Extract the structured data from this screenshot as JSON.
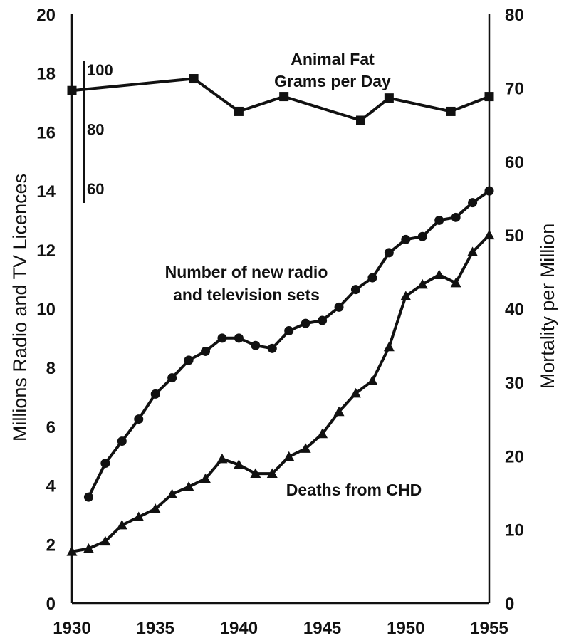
{
  "chart_data": {
    "type": "line",
    "xlabel": "",
    "ylabel_left": "Millions Radio and TV Licences",
    "ylabel_right": "Mortality per Million",
    "xlim": [
      1930,
      1955
    ],
    "ylim_left": [
      0,
      20
    ],
    "ylim_right": [
      0,
      80
    ],
    "grid": false,
    "x_ticks": [
      "1930",
      "1935",
      "1940",
      "1945",
      "1950",
      "1955"
    ],
    "y_ticks_left": [
      "0",
      "2",
      "4",
      "6",
      "8",
      "10",
      "12",
      "14",
      "16",
      "18",
      "20"
    ],
    "y_ticks_right": [
      "0",
      "10",
      "20",
      "30",
      "40",
      "50",
      "60",
      "70",
      "80"
    ],
    "fat_scale_ticks": [
      "100",
      "80",
      "60"
    ],
    "fat_scale_range": [
      60,
      100
    ],
    "annotations": {
      "animal_fat_line1": "Animal Fat",
      "animal_fat_line2": "Grams per Day",
      "radio_line1": "Number of new radio",
      "radio_line2": "and television sets",
      "chd": "Deaths from CHD"
    },
    "series": [
      {
        "axis": "left",
        "marker": "circle",
        "x": [
          1931,
          1932,
          1933,
          1934,
          1935,
          1936,
          1937,
          1938,
          1939,
          1940,
          1941,
          1942,
          1943,
          1944,
          1945,
          1946,
          1947,
          1948,
          1949,
          1950,
          1951,
          1952,
          1953,
          1954,
          1955
        ],
        "values": [
          3.6,
          4.75,
          5.5,
          6.25,
          7.1,
          7.65,
          8.25,
          8.55,
          9.0,
          9.0,
          8.75,
          8.65,
          9.25,
          9.5,
          9.6,
          10.05,
          10.65,
          11.05,
          11.9,
          12.35,
          12.45,
          13.0,
          13.1,
          13.6,
          14.0
        ]
      },
      {
        "axis": "right",
        "marker": "triangle",
        "x": [
          1930,
          1931,
          1932,
          1933,
          1934,
          1935,
          1936,
          1937,
          1938,
          1939,
          1940,
          1941,
          1942,
          1943,
          1944,
          1945,
          1946,
          1947,
          1948,
          1949,
          1950,
          1951,
          1952,
          1953,
          1954,
          1955
        ],
        "values": [
          7.0,
          7.4,
          8.4,
          10.6,
          11.7,
          12.8,
          14.8,
          15.8,
          16.9,
          19.6,
          18.8,
          17.6,
          17.6,
          19.9,
          21.0,
          23.0,
          26.0,
          28.5,
          30.2,
          34.8,
          41.7,
          43.3,
          44.6,
          43.5,
          47.7,
          50.0
        ]
      },
      {
        "axis": "fat_scale",
        "marker": "square",
        "x": [
          1930,
          1937.3,
          1940,
          1942.7,
          1947.3,
          1949,
          1952.7,
          1955
        ],
        "values": [
          93,
          97,
          86,
          91,
          83,
          90.5,
          86,
          91
        ]
      }
    ]
  }
}
